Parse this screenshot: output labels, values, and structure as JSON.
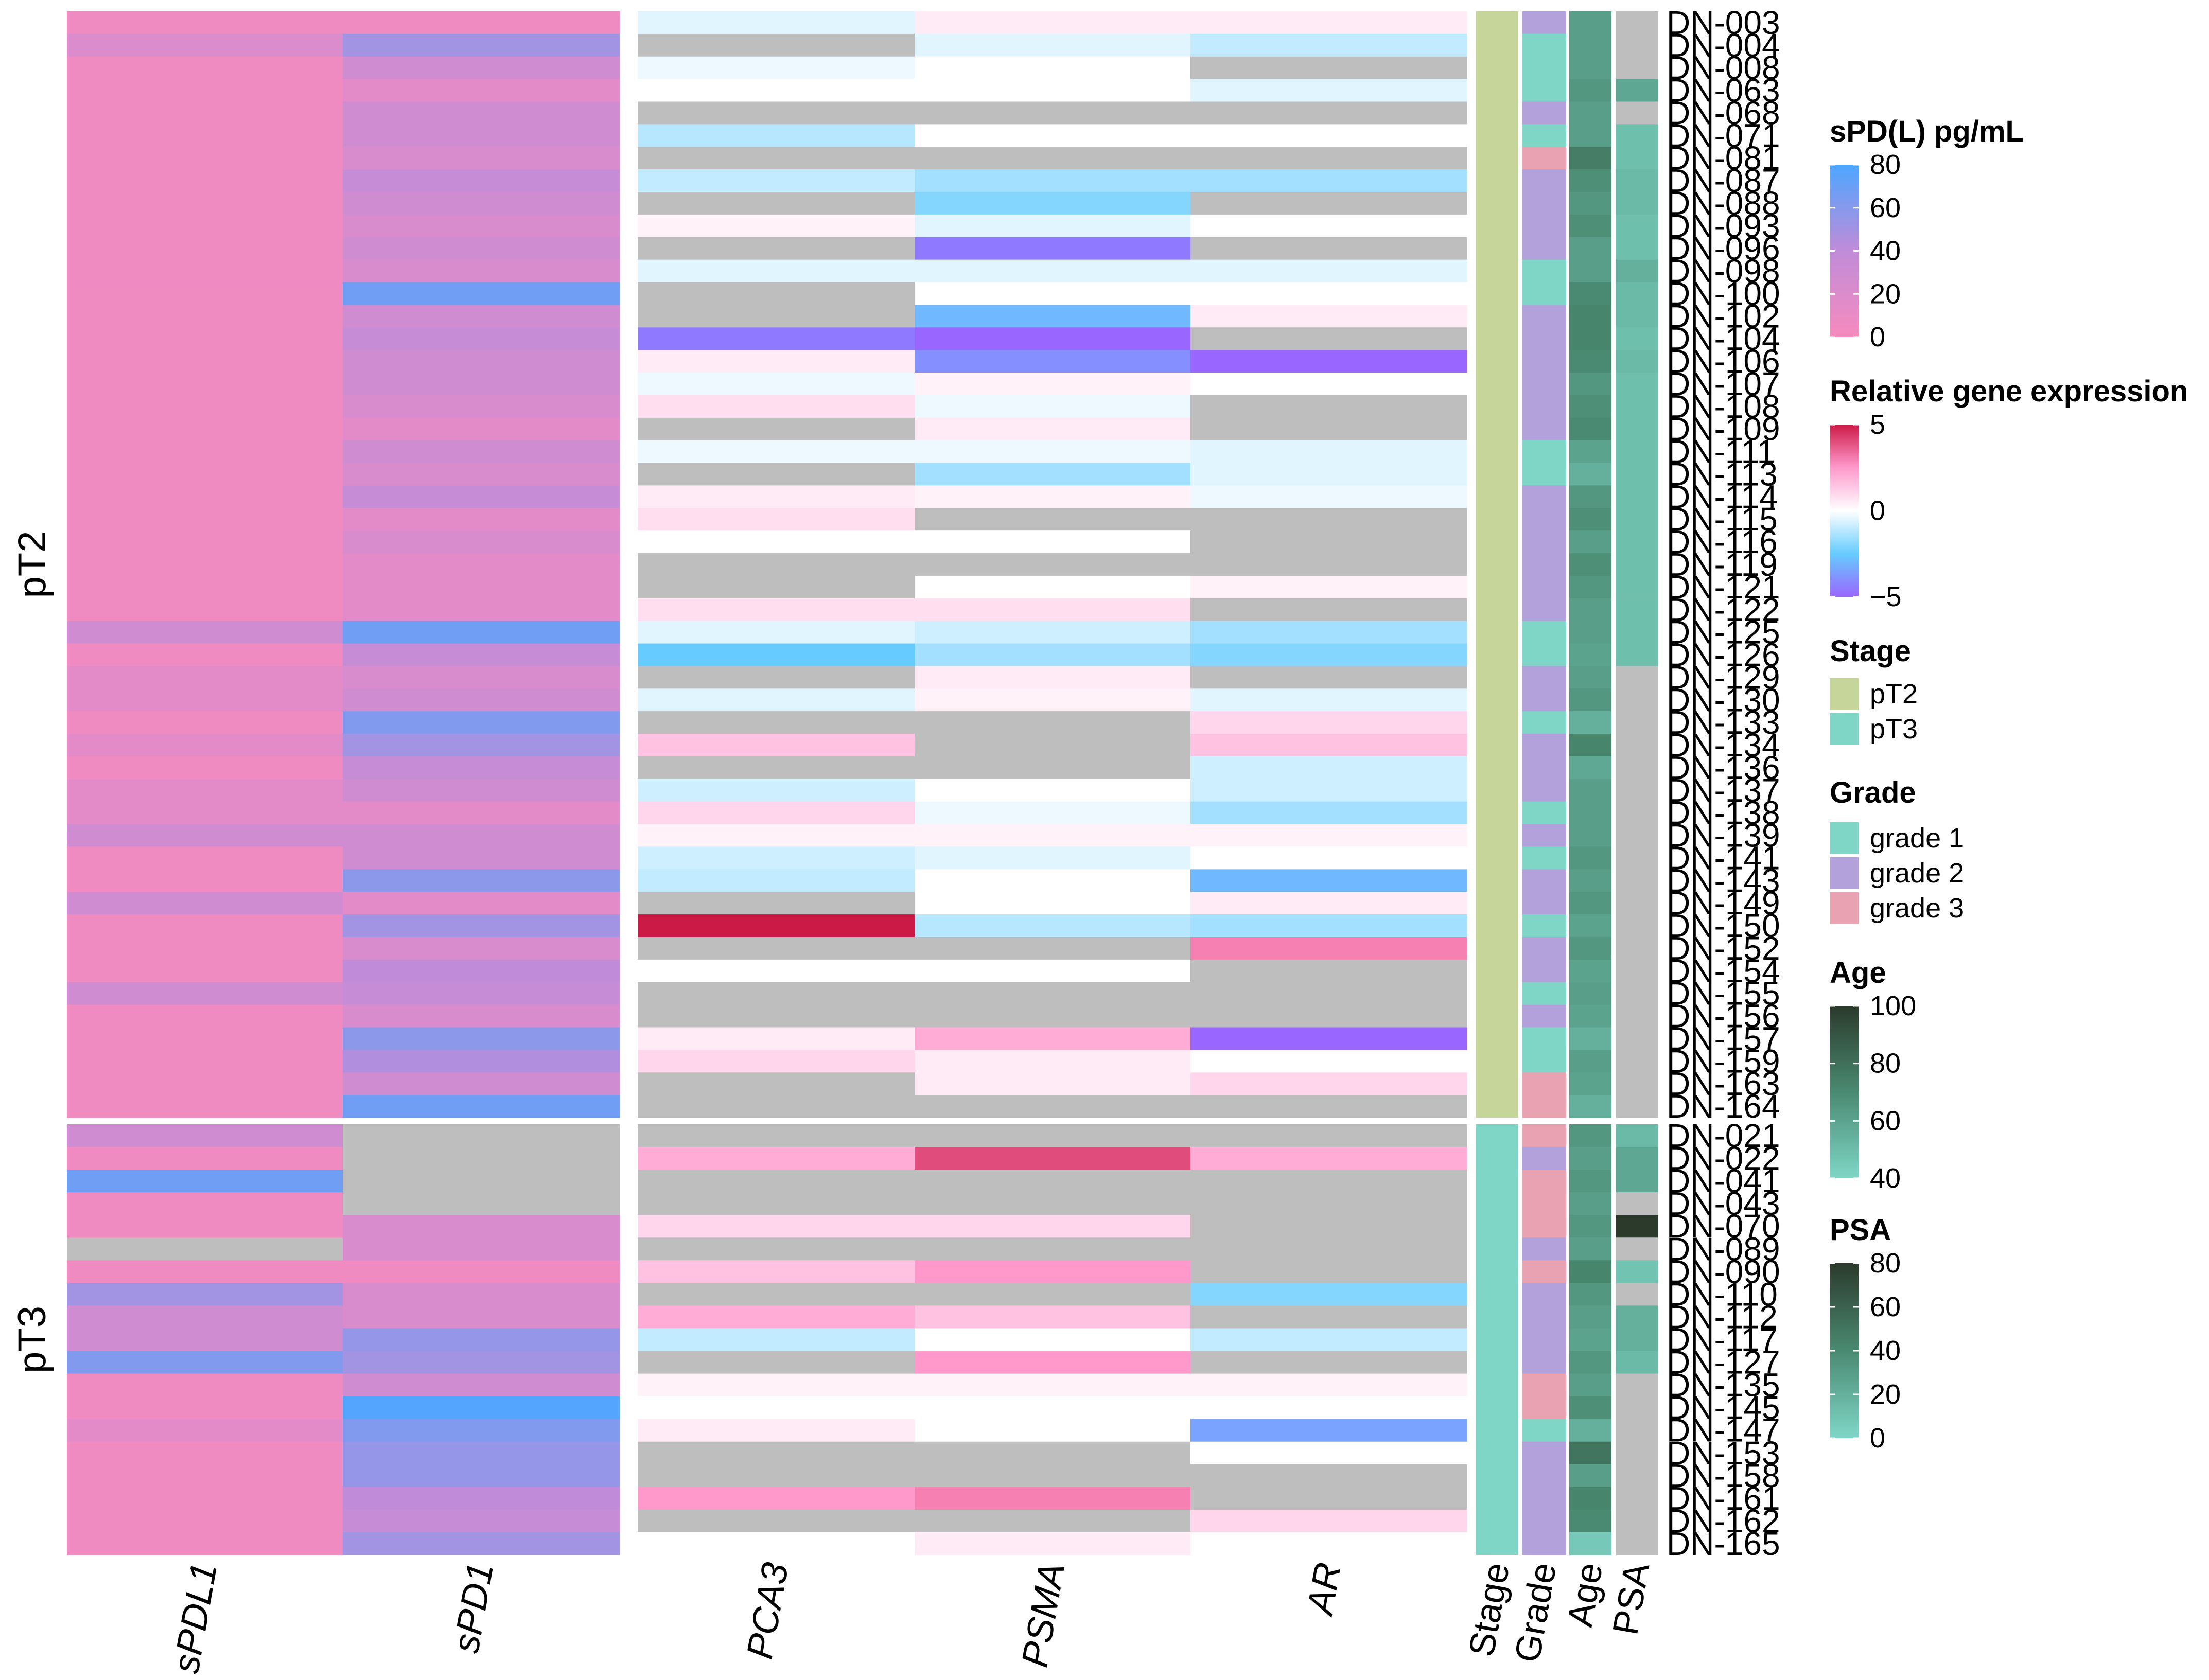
{
  "chart_data": {
    "type": "heatmap",
    "title": "",
    "row_split": [
      "pT2",
      "pT3"
    ],
    "groups": [
      {
        "name": "pT2",
        "samples": [
          "DN-003",
          "DN-004",
          "DN-008",
          "DN-063",
          "DN-068",
          "DN-071",
          "DN-081",
          "DN-087",
          "DN-088",
          "DN-093",
          "DN-096",
          "DN-098",
          "DN-100",
          "DN-102",
          "DN-104",
          "DN-106",
          "DN-107",
          "DN-108",
          "DN-109",
          "DN-111",
          "DN-113",
          "DN-114",
          "DN-115",
          "DN-116",
          "DN-119",
          "DN-121",
          "DN-122",
          "DN-125",
          "DN-126",
          "DN-129",
          "DN-130",
          "DN-133",
          "DN-134",
          "DN-136",
          "DN-137",
          "DN-138",
          "DN-139",
          "DN-141",
          "DN-143",
          "DN-149",
          "DN-150",
          "DN-152",
          "DN-154",
          "DN-155",
          "DN-156",
          "DN-157",
          "DN-159",
          "DN-163",
          "DN-164"
        ]
      },
      {
        "name": "pT3",
        "samples": [
          "DN-021",
          "DN-022",
          "DN-041",
          "DN-043",
          "DN-070",
          "DN-089",
          "DN-090",
          "DN-110",
          "DN-112",
          "DN-117",
          "DN-127",
          "DN-135",
          "DN-145",
          "DN-147",
          "DN-153",
          "DN-158",
          "DN-161",
          "DN-162",
          "DN-165"
        ]
      }
    ],
    "soluble_columns": [
      "sPDL1",
      "sPD1"
    ],
    "soluble_values": {
      "pT2": {
        "sPDL1": [
          5,
          20,
          5,
          5,
          5,
          5,
          5,
          5,
          5,
          5,
          5,
          5,
          5,
          5,
          5,
          5,
          5,
          5,
          5,
          5,
          5,
          5,
          5,
          5,
          5,
          5,
          5,
          28,
          5,
          15,
          15,
          5,
          15,
          5,
          15,
          15,
          28,
          5,
          5,
          28,
          5,
          5,
          5,
          28,
          5,
          5,
          5,
          5,
          5
        ],
        "sPD1": [
          5,
          50,
          28,
          15,
          28,
          28,
          22,
          35,
          28,
          22,
          28,
          22,
          68,
          28,
          35,
          28,
          28,
          22,
          15,
          28,
          22,
          35,
          15,
          22,
          15,
          15,
          15,
          68,
          35,
          22,
          28,
          62,
          50,
          35,
          28,
          15,
          28,
          28,
          58,
          15,
          50,
          22,
          40,
          35,
          22,
          58,
          45,
          28,
          68
        ]
      },
      "pT3": {
        "sPDL1": [
          28,
          5,
          68,
          5,
          5,
          null,
          5,
          50,
          28,
          28,
          62,
          5,
          5,
          15,
          5,
          5,
          5,
          5,
          5
        ],
        "sPD1": [
          null,
          null,
          null,
          null,
          22,
          22,
          5,
          22,
          22,
          55,
          50,
          28,
          78,
          62,
          55,
          55,
          40,
          35,
          50
        ]
      }
    },
    "expression_columns": [
      "PCA3",
      "PSMA",
      "AR"
    ],
    "expression_values": {
      "pT2": {
        "PCA3": [
          -0.5,
          null,
          -0.3,
          0.0,
          null,
          -1.2,
          null,
          -1.0,
          null,
          0.3,
          null,
          -0.5,
          null,
          null,
          -4.5,
          0.5,
          -0.3,
          0.8,
          null,
          -0.3,
          null,
          0.5,
          0.8,
          0.0,
          null,
          null,
          0.8,
          -0.5,
          -2.5,
          null,
          -0.5,
          null,
          1.5,
          null,
          -0.8,
          1.0,
          0.3,
          -0.8,
          -1.0,
          null,
          5.0,
          null,
          0.0,
          null,
          null,
          0.5,
          1.0,
          null,
          null
        ],
        "PSMA": [
          0.5,
          -0.5,
          0.0,
          0.0,
          null,
          0.0,
          null,
          -1.5,
          -2.0,
          -0.5,
          -4.5,
          -0.5,
          0.0,
          -3.0,
          -5.0,
          -4.0,
          0.3,
          -0.3,
          0.5,
          -0.3,
          -1.5,
          0.3,
          null,
          0.0,
          null,
          0.0,
          0.8,
          -0.8,
          -1.5,
          0.5,
          0.3,
          null,
          null,
          null,
          0.0,
          -0.3,
          0.3,
          -0.5,
          0.0,
          0.0,
          -1.2,
          null,
          0.0,
          null,
          null,
          2.0,
          0.5,
          0.5,
          null
        ],
        "AR": [
          0.5,
          -1.0,
          null,
          -0.5,
          null,
          0.0,
          null,
          -1.5,
          null,
          0.0,
          null,
          -0.5,
          0.0,
          0.5,
          null,
          -6.0,
          0.0,
          null,
          null,
          -0.5,
          -0.5,
          -0.3,
          null,
          null,
          null,
          0.3,
          null,
          -1.5,
          -2.0,
          null,
          -0.5,
          1.0,
          1.5,
          -0.8,
          -0.8,
          -1.5,
          0.3,
          0.0,
          -3.0,
          0.5,
          -1.5,
          3.0,
          null,
          null,
          null,
          -6.0,
          0.0,
          1.0,
          null
        ]
      },
      "pT3": {
        "PCA3": [
          null,
          2.0,
          null,
          null,
          1.0,
          null,
          1.5,
          null,
          2.0,
          -1.0,
          null,
          0.3,
          0.0,
          0.5,
          null,
          null,
          2.5,
          null,
          0.0
        ],
        "PSMA": [
          null,
          4.0,
          null,
          null,
          1.0,
          null,
          2.5,
          null,
          1.5,
          0.0,
          2.5,
          0.3,
          0.0,
          0.0,
          null,
          null,
          3.0,
          null,
          0.5
        ],
        "AR": [
          null,
          2.0,
          null,
          null,
          null,
          null,
          null,
          -2.0,
          null,
          -1.0,
          null,
          0.3,
          0.0,
          -3.5,
          0.0,
          null,
          null,
          1.0,
          0.0
        ]
      }
    },
    "annotations": {
      "Stage": {
        "pT2": "pT2",
        "pT3": "pT3"
      },
      "Grade": {
        "pT2": [
          2,
          1,
          1,
          1,
          2,
          1,
          3,
          2,
          2,
          2,
          2,
          1,
          1,
          2,
          2,
          2,
          2,
          2,
          2,
          1,
          1,
          2,
          2,
          2,
          2,
          2,
          2,
          1,
          1,
          2,
          2,
          1,
          2,
          2,
          2,
          1,
          2,
          1,
          2,
          2,
          1,
          2,
          2,
          1,
          2,
          1,
          1,
          3,
          3
        ],
        "pT3": [
          3,
          2,
          3,
          3,
          3,
          2,
          3,
          2,
          2,
          2,
          2,
          3,
          3,
          1,
          2,
          2,
          2,
          2,
          2
        ]
      },
      "Age": {
        "pT2": [
          62,
          62,
          62,
          65,
          62,
          62,
          75,
          68,
          65,
          68,
          62,
          62,
          70,
          72,
          72,
          70,
          65,
          68,
          70,
          60,
          55,
          65,
          68,
          62,
          68,
          65,
          62,
          62,
          60,
          62,
          65,
          55,
          72,
          58,
          62,
          62,
          62,
          65,
          62,
          65,
          60,
          65,
          60,
          62,
          60,
          55,
          62,
          60,
          55
        ],
        "pT3": [
          65,
          62,
          65,
          62,
          65,
          62,
          72,
          65,
          62,
          60,
          65,
          62,
          68,
          55,
          78,
          62,
          72,
          70,
          45
        ]
      },
      "PSA": {
        "pT2": [
          null,
          null,
          null,
          25,
          null,
          12,
          12,
          15,
          15,
          12,
          12,
          20,
          15,
          15,
          12,
          15,
          12,
          12,
          12,
          12,
          12,
          12,
          12,
          12,
          12,
          12,
          12,
          12,
          12,
          null,
          null,
          null,
          null,
          null,
          null,
          null,
          null,
          null,
          null,
          null,
          null,
          null,
          null,
          null,
          null,
          null,
          null,
          null,
          null
        ],
        "pT3": [
          15,
          25,
          25,
          null,
          85,
          null,
          10,
          null,
          20,
          20,
          15,
          null,
          null,
          null,
          null,
          null,
          null,
          null,
          null
        ]
      }
    },
    "annotation_labels": [
      "Stage",
      "Grade",
      "Age",
      "PSA"
    ]
  },
  "legends": {
    "soluble": {
      "title": "sPD(L) pg/mL",
      "ticks": [
        "80",
        "60",
        "40",
        "20",
        "0"
      ],
      "range": [
        0,
        80
      ]
    },
    "expression": {
      "title": "Relative gene expression",
      "ticks": [
        "5",
        "0",
        "−5"
      ],
      "range": [
        -5,
        5
      ]
    },
    "stage": {
      "title": "Stage",
      "items": [
        "pT2",
        "pT3"
      ],
      "colors": [
        "#c6d69a",
        "#7fd6c6"
      ]
    },
    "grade": {
      "title": "Grade",
      "items": [
        "grade 1",
        "grade 2",
        "grade 3"
      ],
      "colors": [
        "#7fd6c6",
        "#b3a1dc",
        "#e8a2b2"
      ]
    },
    "age": {
      "title": "Age",
      "ticks": [
        "100",
        "80",
        "60",
        "40"
      ],
      "range": [
        40,
        100
      ]
    },
    "psa": {
      "title": "PSA",
      "ticks": [
        "80",
        "60",
        "40",
        "20",
        "0"
      ],
      "range": [
        0,
        80
      ]
    }
  },
  "colors": {
    "na": "#bebebe",
    "soluble_low": "#f68bbe",
    "soluble_mid": "#c08cd9",
    "soluble_high": "#4da6ff",
    "expr_low": "#9966ff",
    "expr_low_mid": "#66ccff",
    "expr_mid": "#ffffff",
    "expr_high_mid": "#ff99cc",
    "expr_high": "#cc1a47",
    "age_low": "#7fd6c6",
    "age_mid": "#4a8a72",
    "age_high": "#2b3a2b"
  }
}
